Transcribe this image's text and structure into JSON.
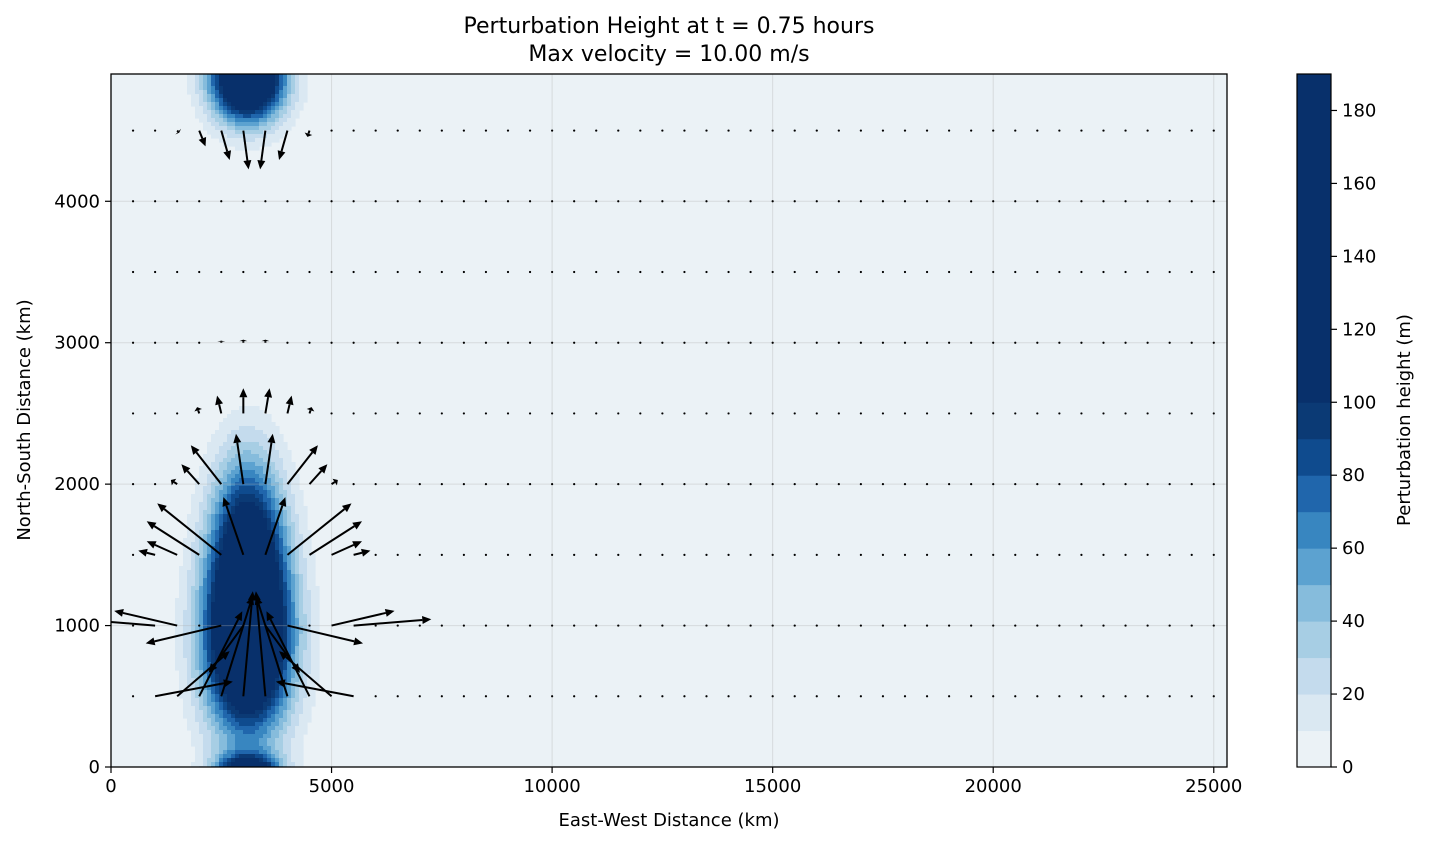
{
  "chart_data": {
    "type": "heatmap",
    "title_lines": [
      "Perturbation Height at t = 0.75 hours",
      "Max velocity = 10.00 m/s"
    ],
    "xlabel": "East-West Distance (km)",
    "ylabel": "North-South Distance (km)",
    "xlim": [
      0,
      25300
    ],
    "ylim": [
      0,
      4900
    ],
    "x_ticks": [
      0,
      5000,
      10000,
      15000,
      20000,
      25000
    ],
    "y_ticks": [
      0,
      1000,
      2000,
      3000,
      4000
    ],
    "grid": true,
    "colorbar": {
      "label": "Perturbation height (m)",
      "range": [
        0,
        190
      ],
      "ticks": [
        0,
        20,
        40,
        60,
        80,
        100,
        120,
        140,
        160,
        180
      ],
      "level_bounds": [
        0,
        10,
        20,
        30,
        40,
        50,
        60,
        70,
        80,
        90,
        100,
        190
      ],
      "colors": [
        "#ebf2f6",
        "#dae8f2",
        "#c4dbed",
        "#a7cee4",
        "#86bcdc",
        "#5ca2d0",
        "#3886c0",
        "#2066ac",
        "#0f4b8e",
        "#0b3a75",
        "#08306b"
      ]
    },
    "blobs": [
      {
        "center": [
          3100,
          900
        ],
        "sigma": [
          950,
          650
        ],
        "amplitude": 190
      },
      {
        "center": [
          3100,
          1650
        ],
        "sigma": [
          800,
          600
        ],
        "amplitude": 95
      },
      {
        "center": [
          3100,
          4880
        ],
        "sigma": [
          800,
          300
        ],
        "amplitude": 190
      },
      {
        "center": [
          3100,
          -100
        ],
        "sigma": [
          700,
          160
        ],
        "amplitude": 190
      }
    ],
    "quiver": {
      "x_spacing": 500,
      "x_start": 500,
      "x_end": 25000,
      "y_rows": [
        500,
        1000,
        1500,
        2000,
        2500,
        3000,
        3500,
        4000,
        4500
      ],
      "center_x": 3100,
      "max_speed": 10.0,
      "units": "m/s",
      "vectors": [
        {
          "y": 500,
          "x": 1000,
          "u": 7.4,
          "v": 1.4
        },
        {
          "y": 500,
          "x": 1500,
          "u": 5.0,
          "v": 4.3
        },
        {
          "y": 500,
          "x": 2000,
          "u": 4.1,
          "v": 8.1
        },
        {
          "y": 500,
          "x": 2500,
          "u": 3.0,
          "v": 9.6
        },
        {
          "y": 500,
          "x": 3000,
          "u": 0.9,
          "v": 10.0
        },
        {
          "y": 500,
          "x": 3500,
          "u": -0.9,
          "v": 10.0
        },
        {
          "y": 500,
          "x": 4000,
          "u": -3.0,
          "v": 9.6
        },
        {
          "y": 500,
          "x": 4500,
          "u": -4.1,
          "v": 8.1
        },
        {
          "y": 500,
          "x": 5000,
          "u": -5.0,
          "v": 4.3
        },
        {
          "y": 500,
          "x": 5500,
          "u": -7.4,
          "v": 1.4
        },
        {
          "y": 1000,
          "x": 1000,
          "u": -7.4,
          "v": 0.6
        },
        {
          "y": 1000,
          "x": 1500,
          "u": -6.0,
          "v": 1.4
        },
        {
          "y": 1000,
          "x": 2500,
          "u": -7.2,
          "v": -1.7
        },
        {
          "y": 1000,
          "x": 3000,
          "u": -3.3,
          "v": -4.5
        },
        {
          "y": 1000,
          "x": 3500,
          "u": 3.3,
          "v": -4.5
        },
        {
          "y": 1000,
          "x": 4000,
          "u": 7.2,
          "v": -1.7
        },
        {
          "y": 1000,
          "x": 5000,
          "u": 6.0,
          "v": 1.4
        },
        {
          "y": 1000,
          "x": 5500,
          "u": 7.4,
          "v": 0.6
        },
        {
          "y": 1500,
          "x": 1000,
          "u": -1.6,
          "v": 0.4
        },
        {
          "y": 1500,
          "x": 1500,
          "u": -2.9,
          "v": 1.3
        },
        {
          "y": 1500,
          "x": 2000,
          "u": -5.0,
          "v": 3.2
        },
        {
          "y": 1500,
          "x": 2500,
          "u": -6.1,
          "v": 4.9
        },
        {
          "y": 1500,
          "x": 3000,
          "u": -1.9,
          "v": 5.5
        },
        {
          "y": 1500,
          "x": 3500,
          "u": 1.9,
          "v": 5.5
        },
        {
          "y": 1500,
          "x": 4000,
          "u": 6.1,
          "v": 4.9
        },
        {
          "y": 1500,
          "x": 4500,
          "u": 5.0,
          "v": 3.2
        },
        {
          "y": 1500,
          "x": 5000,
          "u": 2.9,
          "v": 1.3
        },
        {
          "y": 1500,
          "x": 5500,
          "u": 1.6,
          "v": 0.4
        },
        {
          "y": 2000,
          "x": 1500,
          "u": -0.6,
          "v": 0.4
        },
        {
          "y": 2000,
          "x": 2000,
          "u": -1.7,
          "v": 1.9
        },
        {
          "y": 2000,
          "x": 2500,
          "u": -2.9,
          "v": 3.7
        },
        {
          "y": 2000,
          "x": 3000,
          "u": -0.7,
          "v": 4.8
        },
        {
          "y": 2000,
          "x": 3500,
          "u": 0.7,
          "v": 4.8
        },
        {
          "y": 2000,
          "x": 4000,
          "u": 2.9,
          "v": 3.7
        },
        {
          "y": 2000,
          "x": 4500,
          "u": 1.7,
          "v": 1.9
        },
        {
          "y": 2000,
          "x": 5000,
          "u": 0.6,
          "v": 0.4
        },
        {
          "y": 2500,
          "x": 2000,
          "u": -0.2,
          "v": 0.6
        },
        {
          "y": 2500,
          "x": 2500,
          "u": -0.4,
          "v": 1.7
        },
        {
          "y": 2500,
          "x": 3000,
          "u": 0.0,
          "v": 2.4
        },
        {
          "y": 2500,
          "x": 3500,
          "u": 0.4,
          "v": 2.4
        },
        {
          "y": 2500,
          "x": 4000,
          "u": 0.4,
          "v": 1.7
        },
        {
          "y": 2500,
          "x": 4500,
          "u": 0.2,
          "v": 0.6
        },
        {
          "y": 3000,
          "x": 2500,
          "u": 0.0,
          "v": 0.2
        },
        {
          "y": 3000,
          "x": 3000,
          "u": 0.0,
          "v": 0.3
        },
        {
          "y": 3000,
          "x": 3500,
          "u": 0.0,
          "v": 0.3
        },
        {
          "y": 4500,
          "x": 1500,
          "u": 0.2,
          "v": -0.2
        },
        {
          "y": 4500,
          "x": 2000,
          "u": 0.6,
          "v": -1.5
        },
        {
          "y": 4500,
          "x": 2500,
          "u": 0.8,
          "v": -2.8
        },
        {
          "y": 4500,
          "x": 3000,
          "u": 0.5,
          "v": -3.7
        },
        {
          "y": 4500,
          "x": 3500,
          "u": -0.5,
          "v": -3.7
        },
        {
          "y": 4500,
          "x": 4000,
          "u": -0.8,
          "v": -2.8
        },
        {
          "y": 4500,
          "x": 4500,
          "u": -0.2,
          "v": -0.6
        }
      ]
    }
  }
}
